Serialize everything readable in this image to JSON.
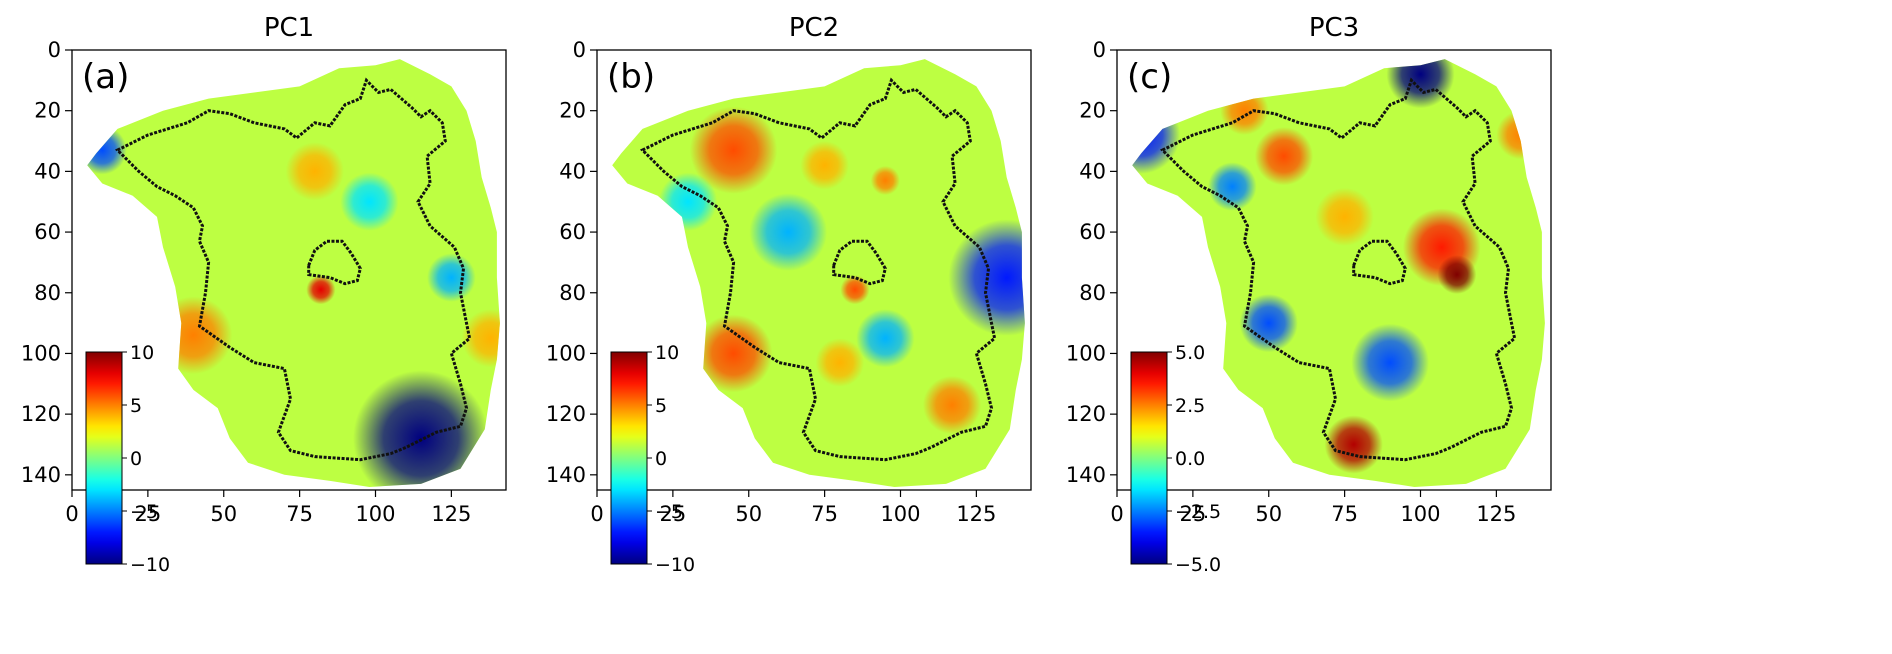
{
  "colormap": "jet",
  "chart_data": [
    {
      "type": "heatmap",
      "title": "PC1",
      "panel_label": "(a)",
      "xlim": [
        0,
        143
      ],
      "ylim": [
        145,
        0
      ],
      "x_ticks": [
        0,
        25,
        50,
        75,
        100,
        125
      ],
      "y_ticks": [
        0,
        20,
        40,
        60,
        80,
        100,
        120,
        140
      ],
      "colorbar": {
        "min": -10,
        "max": 10,
        "ticks": [
          10,
          5,
          0,
          -5,
          -10
        ],
        "tick_labels": [
          "10",
          "5",
          "0",
          "−5",
          "−10"
        ]
      },
      "hotspots": [
        {
          "x": 115,
          "y": 128,
          "value": -11,
          "r": 14
        },
        {
          "x": 10,
          "y": 33,
          "value": -6,
          "r": 5
        },
        {
          "x": 40,
          "y": 94,
          "value": 5,
          "r": 8
        },
        {
          "x": 138,
          "y": 95,
          "value": 4,
          "r": 6
        },
        {
          "x": 80,
          "y": 40,
          "value": 4,
          "r": 6
        },
        {
          "x": 82,
          "y": 79,
          "value": 8,
          "r": 3
        },
        {
          "x": 98,
          "y": 50,
          "value": -3,
          "r": 6
        },
        {
          "x": 125,
          "y": 75,
          "value": -4,
          "r": 5
        }
      ]
    },
    {
      "type": "heatmap",
      "title": "PC2",
      "panel_label": "(b)",
      "xlim": [
        0,
        143
      ],
      "ylim": [
        145,
        0
      ],
      "x_ticks": [
        0,
        25,
        50,
        75,
        100,
        125
      ],
      "y_ticks": [
        0,
        20,
        40,
        60,
        80,
        100,
        120,
        140
      ],
      "colorbar": {
        "min": -10,
        "max": 10,
        "ticks": [
          10,
          5,
          0,
          -5,
          -10
        ],
        "tick_labels": [
          "10",
          "5",
          "0",
          "−5",
          "−10"
        ]
      },
      "hotspots": [
        {
          "x": 45,
          "y": 33,
          "value": 6,
          "r": 9
        },
        {
          "x": 75,
          "y": 38,
          "value": 4,
          "r": 5
        },
        {
          "x": 95,
          "y": 43,
          "value": 5,
          "r": 3
        },
        {
          "x": 135,
          "y": 75,
          "value": -7,
          "r": 12
        },
        {
          "x": 45,
          "y": 100,
          "value": 6,
          "r": 8
        },
        {
          "x": 80,
          "y": 103,
          "value": 4,
          "r": 5
        },
        {
          "x": 117,
          "y": 117,
          "value": 5,
          "r": 6
        },
        {
          "x": 85,
          "y": 79,
          "value": 6,
          "r": 3
        },
        {
          "x": 63,
          "y": 60,
          "value": -4,
          "r": 8
        },
        {
          "x": 95,
          "y": 95,
          "value": -4,
          "r": 6
        },
        {
          "x": 30,
          "y": 50,
          "value": -3,
          "r": 6
        }
      ]
    },
    {
      "type": "heatmap",
      "title": "PC3",
      "panel_label": "(c)",
      "xlim": [
        0,
        143
      ],
      "ylim": [
        145,
        0
      ],
      "x_ticks": [
        0,
        25,
        50,
        75,
        100,
        125
      ],
      "y_ticks": [
        0,
        20,
        40,
        60,
        80,
        100,
        120,
        140
      ],
      "colorbar": {
        "min": -5,
        "max": 5,
        "ticks": [
          5,
          2.5,
          0,
          -2.5,
          -5
        ],
        "tick_labels": [
          "5.0",
          "2.5",
          "0.0",
          "−2.5",
          "−5.0"
        ]
      },
      "hotspots": [
        {
          "x": 100,
          "y": 8,
          "value": -5,
          "r": 7
        },
        {
          "x": 8,
          "y": 28,
          "value": -3.5,
          "r": 8
        },
        {
          "x": 55,
          "y": 35,
          "value": 3,
          "r": 6
        },
        {
          "x": 42,
          "y": 20,
          "value": 2.5,
          "r": 5
        },
        {
          "x": 107,
          "y": 65,
          "value": 3.5,
          "r": 8
        },
        {
          "x": 112,
          "y": 74,
          "value": 5,
          "r": 4
        },
        {
          "x": 78,
          "y": 130,
          "value": 4.5,
          "r": 6
        },
        {
          "x": 90,
          "y": 103,
          "value": -3,
          "r": 8
        },
        {
          "x": 50,
          "y": 90,
          "value": -3,
          "r": 6
        },
        {
          "x": 38,
          "y": 45,
          "value": -2.5,
          "r": 5
        },
        {
          "x": 133,
          "y": 28,
          "value": 2.5,
          "r": 5
        },
        {
          "x": 75,
          "y": 55,
          "value": 2,
          "r": 6
        }
      ]
    }
  ]
}
